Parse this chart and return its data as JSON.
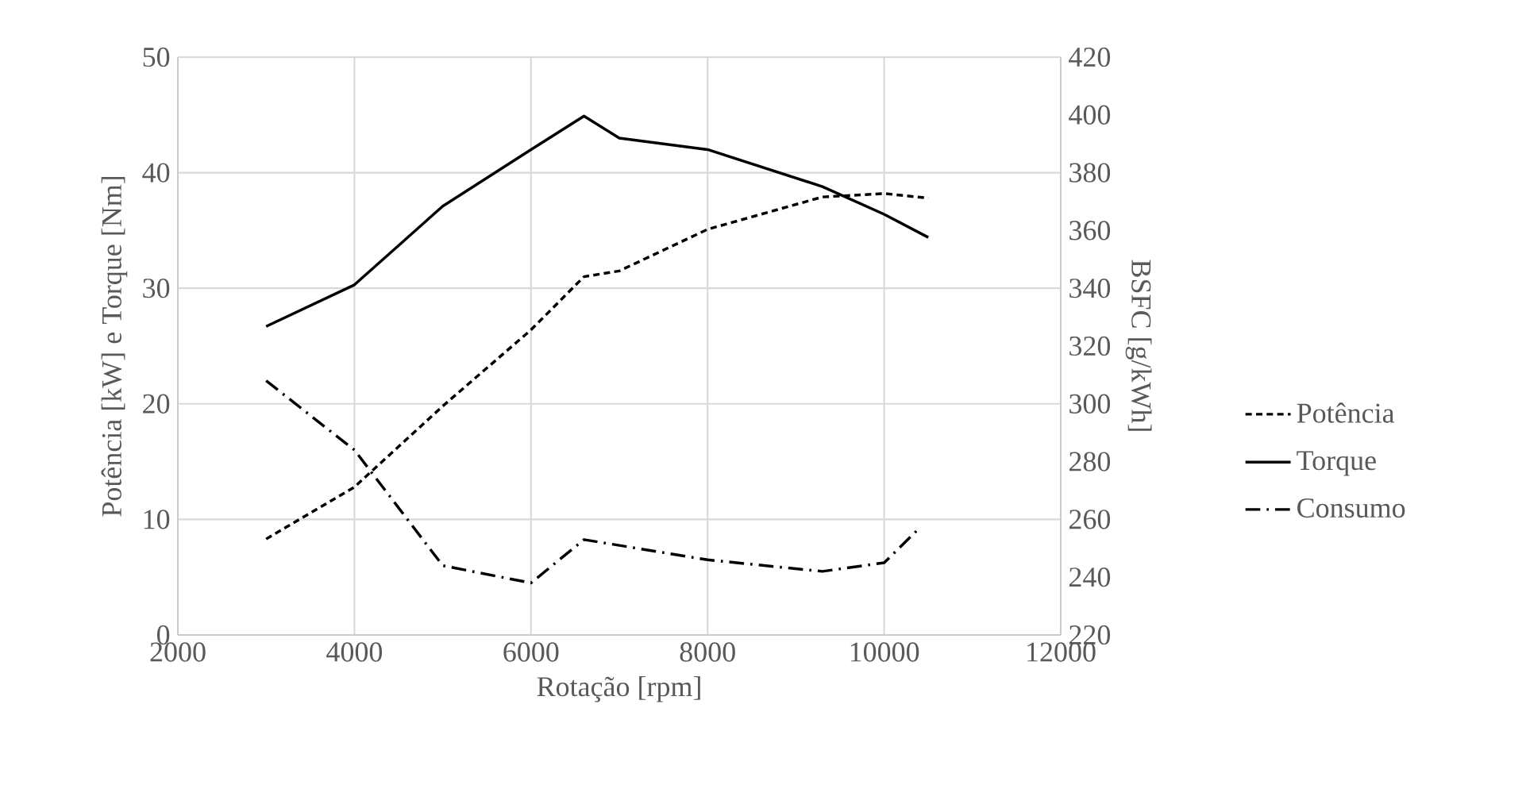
{
  "chart_data": {
    "type": "line",
    "xlabel": "Rotação [rpm]",
    "ylabel": "Potência [kW] e Torque [Nm]",
    "y2label": "BSFC [g/kWh]",
    "xlim": [
      2000,
      12000
    ],
    "xticks": [
      2000,
      4000,
      6000,
      8000,
      10000,
      12000
    ],
    "ylim": [
      0,
      50
    ],
    "yticks": [
      0,
      10,
      20,
      30,
      40,
      50
    ],
    "y2lim": [
      220,
      420
    ],
    "y2ticks": [
      220,
      240,
      260,
      280,
      300,
      320,
      340,
      360,
      380,
      400,
      420
    ],
    "grid": true,
    "legend": "right",
    "series": [
      {
        "name": "Potência",
        "color": "#000000",
        "line_style": "dashed",
        "x": [
          3000,
          4000,
          5000,
          6000,
          6600,
          7000,
          8000,
          9300,
          10000,
          10500
        ],
        "values": [
          8.3,
          12.8,
          19.8,
          26.4,
          31.0,
          31.5,
          35.1,
          37.9,
          38.2,
          37.8
        ]
      },
      {
        "name": "Torque",
        "color": "#000000",
        "line_style": "solid",
        "x": [
          3000,
          4000,
          5000,
          6000,
          6600,
          7000,
          8000,
          9300,
          10000,
          10500
        ],
        "values": [
          26.7,
          30.3,
          37.1,
          42.0,
          44.9,
          43.0,
          42.0,
          38.8,
          36.4,
          34.4
        ]
      },
      {
        "name": "Consumo",
        "color": "#000000",
        "line_style": "dashdot",
        "axis": "y2",
        "x": [
          3000,
          4000,
          5000,
          6000,
          6600,
          7000,
          8000,
          9300,
          10000,
          10400
        ],
        "values": [
          308,
          284,
          244,
          238,
          253,
          251,
          246,
          242,
          245,
          257
        ]
      }
    ]
  }
}
